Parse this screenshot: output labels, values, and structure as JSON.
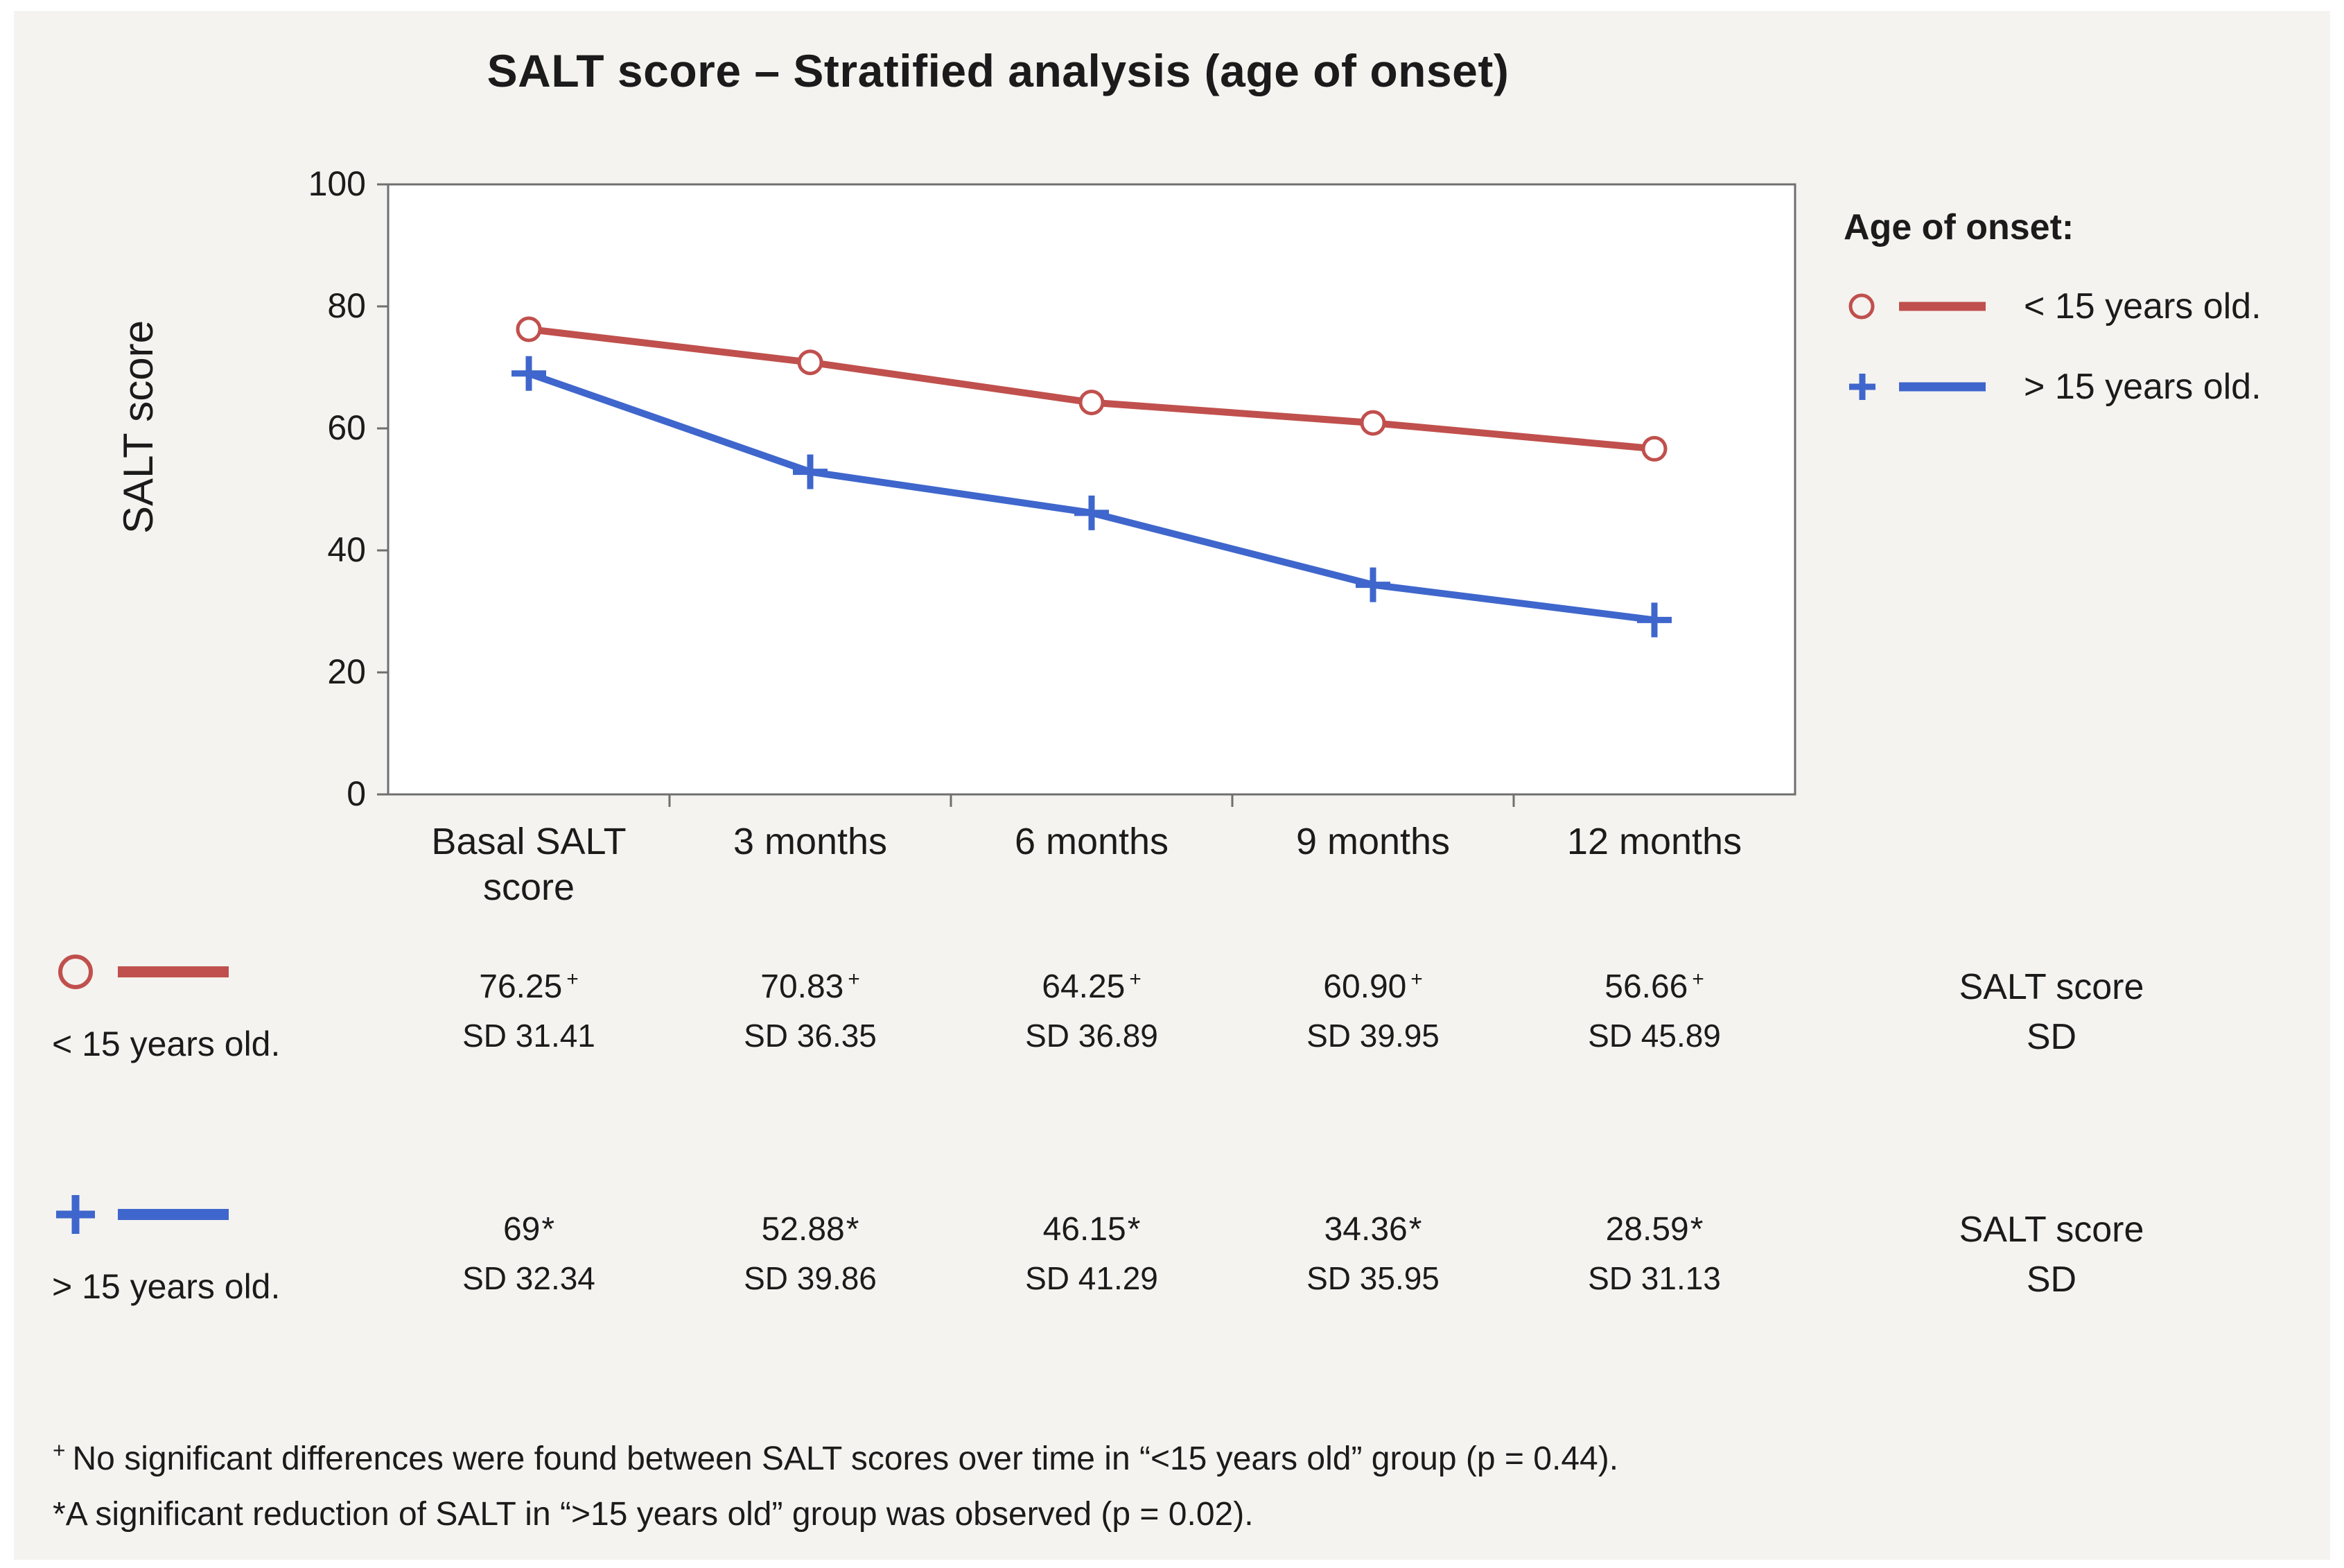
{
  "title": "SALT score – Stratified analysis (age of onset)",
  "y_axis_label": "SALT score",
  "legend": {
    "title": "Age of onset:",
    "items": [
      {
        "label": "< 15 years old."
      },
      {
        "label": "> 15 years old."
      }
    ]
  },
  "chart_data": {
    "type": "line",
    "title": "SALT score – Stratified analysis (age of onset)",
    "categories": [
      "Basal SALT score",
      "3 months",
      "6 months",
      "9 months",
      "12 months"
    ],
    "ylabel": "SALT score",
    "ylim": [
      0,
      100
    ],
    "yticks": [
      0,
      20,
      40,
      60,
      80,
      100
    ],
    "grid": false,
    "legend_position": "right",
    "series": [
      {
        "name": "< 15 years old.",
        "marker": "circle",
        "color": "#C0504D",
        "values": [
          76.25,
          70.83,
          64.25,
          60.9,
          56.66
        ],
        "sd": [
          31.41,
          36.35,
          36.89,
          39.95,
          45.89
        ]
      },
      {
        "name": "> 15 years old.",
        "marker": "plus",
        "color": "#3F66CC",
        "values": [
          69,
          52.88,
          46.15,
          34.36,
          28.59
        ],
        "sd": [
          32.34,
          39.86,
          41.29,
          35.95,
          31.13
        ]
      }
    ]
  },
  "table": {
    "rows": [
      {
        "key_label": "< 15 years old.",
        "right_label": "SALT score\nSD",
        "cells": [
          {
            "mean": "76.25",
            "flag": "+",
            "sd": "SD 31.41"
          },
          {
            "mean": "70.83",
            "flag": "+",
            "sd": "SD 36.35"
          },
          {
            "mean": "64.25",
            "flag": "+",
            "sd": "SD 36.89"
          },
          {
            "mean": "60.90",
            "flag": "+",
            "sd": "SD 39.95"
          },
          {
            "mean": "56.66",
            "flag": "+",
            "sd": "SD 45.89"
          }
        ]
      },
      {
        "key_label": "> 15 years old.",
        "right_label": "SALT score\nSD",
        "cells": [
          {
            "mean": "69",
            "flag": "*",
            "sd": "SD 32.34"
          },
          {
            "mean": "52.88",
            "flag": "*",
            "sd": "SD 39.86"
          },
          {
            "mean": "46.15",
            "flag": "*",
            "sd": "SD 41.29"
          },
          {
            "mean": "34.36",
            "flag": "*",
            "sd": "SD 35.95"
          },
          {
            "mean": "28.59",
            "flag": "*",
            "sd": "SD 31.13"
          }
        ]
      }
    ]
  },
  "footnotes": [
    {
      "marker": "+",
      "text": "No significant differences were found between SALT scores over time in “<15 years old” group (p = 0.44)."
    },
    {
      "marker": "*",
      "text": "A significant reduction of SALT in “>15 years old” group was observed (p = 0.02)."
    }
  ]
}
